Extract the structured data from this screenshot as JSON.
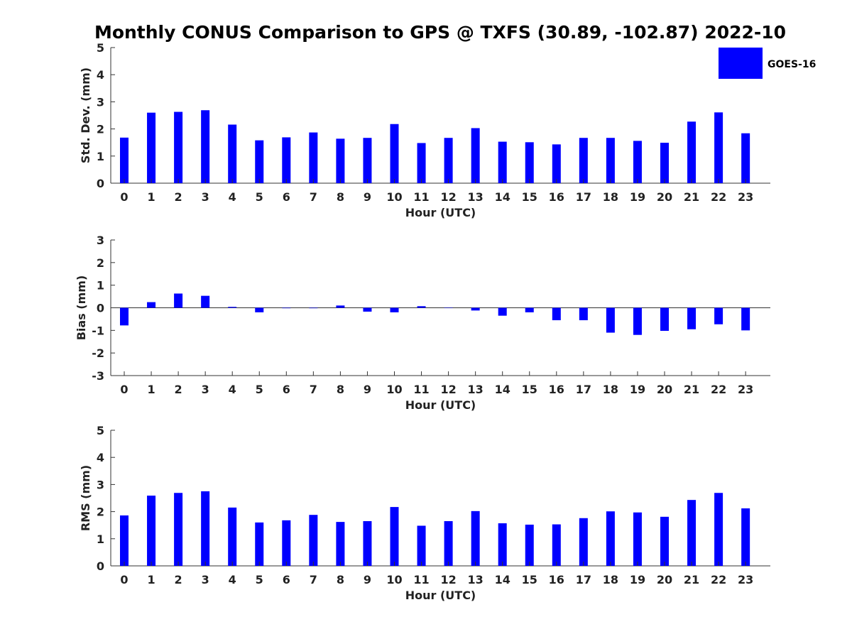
{
  "title": "Monthly CONUS Comparison to GPS @ TXFS (30.89, -102.87) 2022-10",
  "legend": {
    "label": "GOES-16",
    "color": "#0000ff"
  },
  "chart_data": [
    {
      "type": "bar",
      "xlabel": "Hour (UTC)",
      "ylabel": "Std. Dev. (mm)",
      "ylim": [
        0,
        5
      ],
      "yticks": [
        0,
        1,
        2,
        3,
        4,
        5
      ],
      "categories": [
        "0",
        "1",
        "2",
        "3",
        "4",
        "5",
        "6",
        "7",
        "8",
        "9",
        "10",
        "11",
        "12",
        "13",
        "14",
        "15",
        "16",
        "17",
        "18",
        "19",
        "20",
        "21",
        "22",
        "23"
      ],
      "series": [
        {
          "name": "GOES-16",
          "color": "#0000ff",
          "values": [
            1.68,
            2.6,
            2.63,
            2.69,
            2.16,
            1.58,
            1.69,
            1.87,
            1.64,
            1.67,
            2.18,
            1.48,
            1.67,
            2.03,
            1.53,
            1.51,
            1.43,
            1.67,
            1.67,
            1.56,
            1.49,
            2.27,
            2.61,
            1.84
          ]
        }
      ]
    },
    {
      "type": "bar",
      "xlabel": "Hour (UTC)",
      "ylabel": "Bias (mm)",
      "ylim": [
        -3,
        3
      ],
      "yticks": [
        -3,
        -2,
        -1,
        0,
        1,
        2,
        3
      ],
      "categories": [
        "0",
        "1",
        "2",
        "3",
        "4",
        "5",
        "6",
        "7",
        "8",
        "9",
        "10",
        "11",
        "12",
        "13",
        "14",
        "15",
        "16",
        "17",
        "18",
        "19",
        "20",
        "21",
        "22",
        "23"
      ],
      "series": [
        {
          "name": "GOES-16",
          "color": "#0000ff",
          "values": [
            -0.78,
            0.25,
            0.63,
            0.53,
            0.04,
            -0.2,
            -0.02,
            -0.02,
            0.1,
            -0.17,
            -0.2,
            0.07,
            -0.01,
            -0.12,
            -0.35,
            -0.2,
            -0.55,
            -0.55,
            -1.1,
            -1.2,
            -1.02,
            -0.95,
            -0.73,
            -1.0
          ]
        }
      ]
    },
    {
      "type": "bar",
      "xlabel": "Hour (UTC)",
      "ylabel": "RMS (mm)",
      "ylim": [
        0,
        5
      ],
      "yticks": [
        0,
        1,
        2,
        3,
        4,
        5
      ],
      "categories": [
        "0",
        "1",
        "2",
        "3",
        "4",
        "5",
        "6",
        "7",
        "8",
        "9",
        "10",
        "11",
        "12",
        "13",
        "14",
        "15",
        "16",
        "17",
        "18",
        "19",
        "20",
        "21",
        "22",
        "23"
      ],
      "series": [
        {
          "name": "GOES-16",
          "color": "#0000ff",
          "values": [
            1.86,
            2.59,
            2.69,
            2.75,
            2.15,
            1.6,
            1.68,
            1.88,
            1.62,
            1.65,
            2.17,
            1.48,
            1.65,
            2.02,
            1.57,
            1.52,
            1.53,
            1.76,
            2.01,
            1.97,
            1.81,
            2.43,
            2.69,
            2.12
          ]
        }
      ]
    }
  ]
}
